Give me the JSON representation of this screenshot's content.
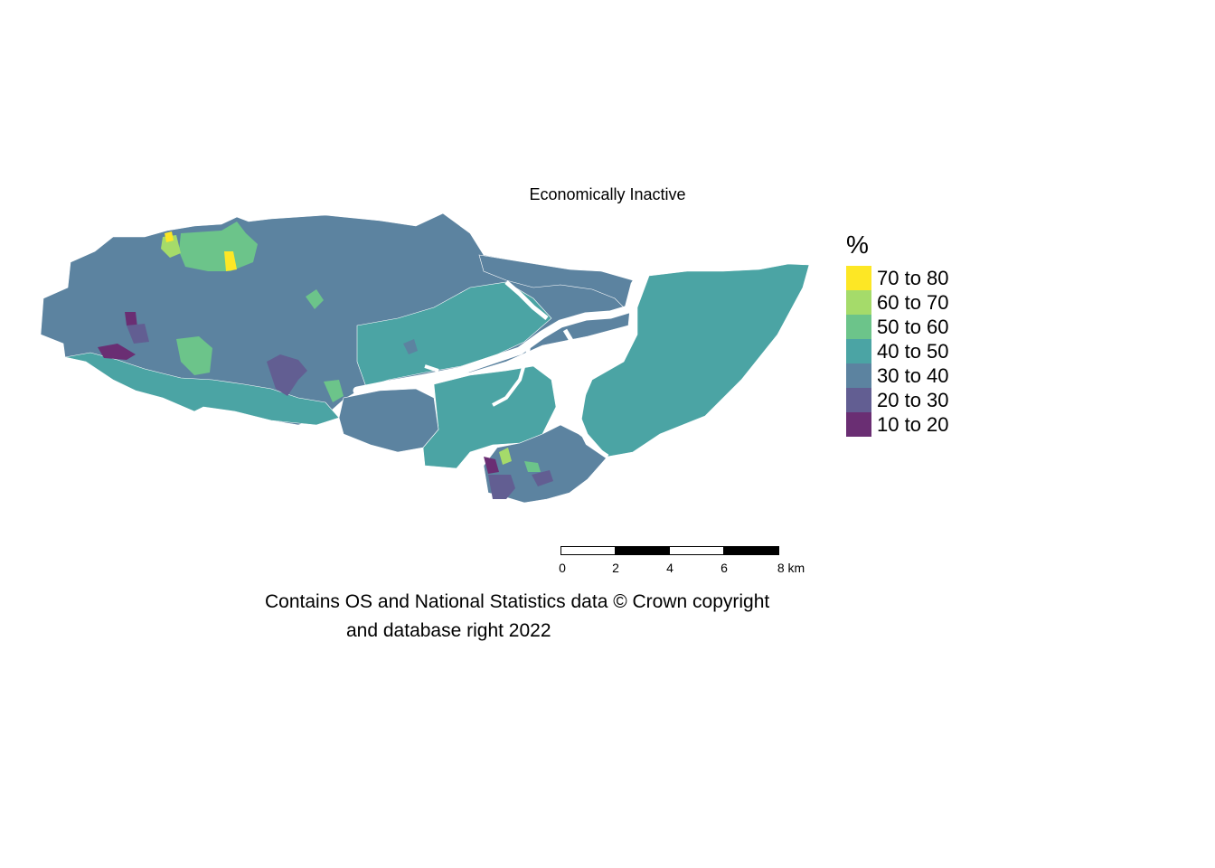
{
  "map": {
    "title": "Economically Inactive",
    "legend_title": "%",
    "legend": [
      {
        "label": "70 to 80",
        "color": "#FDE725"
      },
      {
        "label": "60 to 70",
        "color": "#A5DB6A"
      },
      {
        "label": "50 to 60",
        "color": "#6CC48A"
      },
      {
        "label": "40 to 50",
        "color": "#4BA4A4"
      },
      {
        "label": "30 to 40",
        "color": "#5C83A0"
      },
      {
        "label": "20 to 30",
        "color": "#625E92"
      },
      {
        "label": "10 to 20",
        "color": "#6A2E73"
      }
    ],
    "scale_ticks": [
      "0",
      "2",
      "4",
      "6",
      "8 km"
    ],
    "credit_line1": "Contains OS and National Statistics data © Crown copyright",
    "credit_line2": "and database right 2022"
  }
}
